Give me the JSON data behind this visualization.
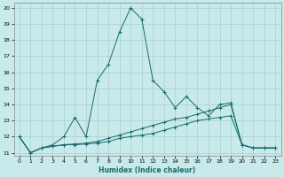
{
  "title": "",
  "xlabel": "Humidex (Indice chaleur)",
  "ylabel": "",
  "background_color": "#c8eaea",
  "grid_color": "#a8d0d0",
  "line_color": "#1a6b6b",
  "xlim": [
    -0.5,
    23.5
  ],
  "ylim": [
    10.8,
    20.3
  ],
  "yticks": [
    11,
    12,
    13,
    14,
    15,
    16,
    17,
    18,
    19,
    20
  ],
  "xticks": [
    0,
    1,
    2,
    3,
    4,
    5,
    6,
    7,
    8,
    9,
    10,
    11,
    12,
    13,
    14,
    15,
    16,
    17,
    18,
    19,
    20,
    21,
    22,
    23
  ],
  "series1": [
    [
      0,
      12
    ],
    [
      1,
      11
    ],
    [
      2,
      11.3
    ],
    [
      3,
      11.5
    ],
    [
      4,
      12.0
    ],
    [
      5,
      13.2
    ],
    [
      6,
      12.0
    ],
    [
      7,
      15.5
    ],
    [
      8,
      16.5
    ],
    [
      9,
      18.5
    ],
    [
      10,
      20.0
    ],
    [
      11,
      19.3
    ],
    [
      12,
      15.5
    ],
    [
      13,
      14.8
    ],
    [
      14,
      13.8
    ],
    [
      15,
      14.5
    ],
    [
      16,
      13.8
    ],
    [
      17,
      13.3
    ],
    [
      18,
      14.0
    ],
    [
      19,
      14.1
    ],
    [
      20,
      11.5
    ],
    [
      21,
      11.3
    ],
    [
      22,
      11.3
    ],
    [
      23,
      11.3
    ]
  ],
  "series2": [
    [
      0,
      12
    ],
    [
      1,
      11
    ],
    [
      2,
      11.3
    ],
    [
      3,
      11.4
    ],
    [
      4,
      11.5
    ],
    [
      5,
      11.55
    ],
    [
      6,
      11.6
    ],
    [
      7,
      11.7
    ],
    [
      8,
      11.9
    ],
    [
      9,
      12.1
    ],
    [
      10,
      12.3
    ],
    [
      11,
      12.5
    ],
    [
      12,
      12.7
    ],
    [
      13,
      12.9
    ],
    [
      14,
      13.1
    ],
    [
      15,
      13.2
    ],
    [
      16,
      13.4
    ],
    [
      17,
      13.6
    ],
    [
      18,
      13.8
    ],
    [
      19,
      14.0
    ],
    [
      20,
      11.5
    ],
    [
      21,
      11.3
    ],
    [
      22,
      11.3
    ],
    [
      23,
      11.3
    ]
  ],
  "series3": [
    [
      0,
      12
    ],
    [
      1,
      11
    ],
    [
      2,
      11.3
    ],
    [
      3,
      11.4
    ],
    [
      4,
      11.5
    ],
    [
      5,
      11.5
    ],
    [
      6,
      11.55
    ],
    [
      7,
      11.6
    ],
    [
      8,
      11.7
    ],
    [
      9,
      11.9
    ],
    [
      10,
      12.0
    ],
    [
      11,
      12.1
    ],
    [
      12,
      12.2
    ],
    [
      13,
      12.4
    ],
    [
      14,
      12.6
    ],
    [
      15,
      12.8
    ],
    [
      16,
      13.0
    ],
    [
      17,
      13.1
    ],
    [
      18,
      13.2
    ],
    [
      19,
      13.3
    ],
    [
      20,
      11.5
    ],
    [
      21,
      11.3
    ],
    [
      22,
      11.3
    ],
    [
      23,
      11.3
    ]
  ]
}
